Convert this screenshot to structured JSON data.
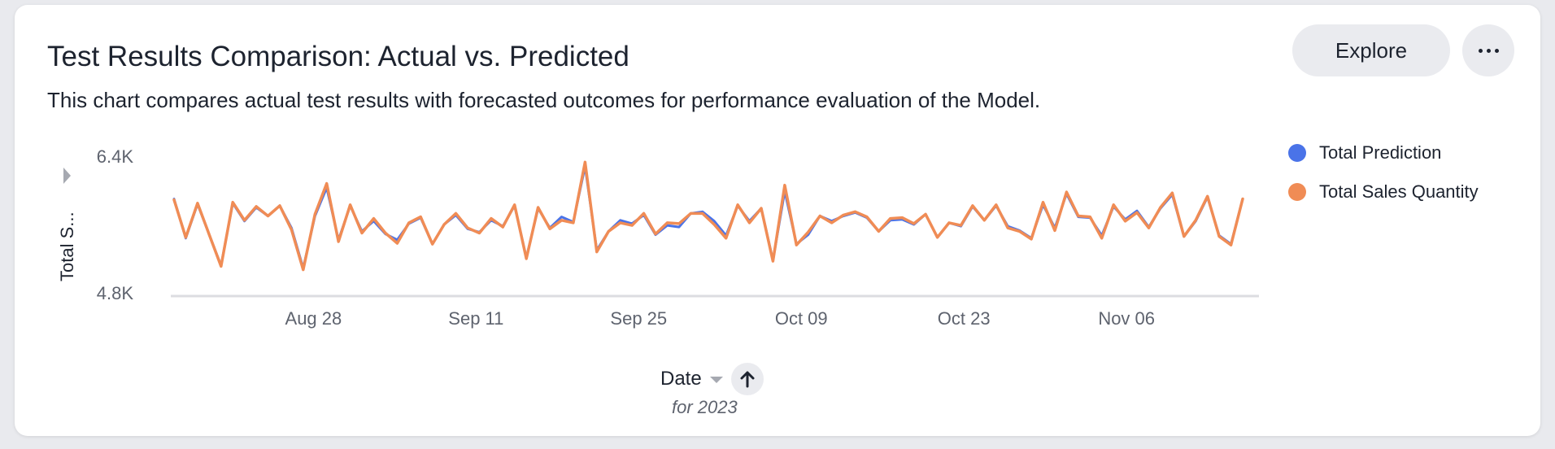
{
  "header": {
    "title": "Test Results Comparison: Actual vs. Predicted",
    "subtitle": "This chart compares actual test results with forecasted outcomes for performance evaluation of the Model.",
    "explore_label": "Explore",
    "more_icon": "more-horizontal-icon"
  },
  "x_axis": {
    "label": "Date",
    "note": "for 2023",
    "sort_icon": "arrow-up-icon"
  },
  "y_axis": {
    "label": "Total S..."
  },
  "colors": {
    "prediction": "#4a73e8",
    "sales": "#f08c55",
    "grid": "#dcdde1",
    "tick_text": "#5e636e"
  },
  "legend": {
    "items": [
      {
        "label": "Total Prediction"
      },
      {
        "label": "Total Sales Quantity"
      }
    ]
  },
  "chart_data": {
    "type": "line",
    "title": "Test Results Comparison: Actual vs. Predicted",
    "xlabel": "Date",
    "ylabel": "Total S...",
    "x_start": "2023-08-16",
    "x_end": "2023-11-16",
    "x_ticks": [
      "Aug 28",
      "Sep 11",
      "Sep 25",
      "Oct 09",
      "Oct 23",
      "Nov 06"
    ],
    "y_ticks": [
      "6.4K",
      "4.8K"
    ],
    "ylim": [
      4800,
      6400
    ],
    "grid": false,
    "legend_position": "right",
    "series": [
      {
        "name": "Total Prediction",
        "values": [
          5900,
          5440,
          5840,
          5480,
          5120,
          5850,
          5640,
          5800,
          5700,
          5820,
          5560,
          5090,
          5700,
          6030,
          5420,
          5820,
          5520,
          5640,
          5490,
          5420,
          5610,
          5680,
          5370,
          5600,
          5710,
          5550,
          5510,
          5650,
          5580,
          5820,
          5210,
          5790,
          5560,
          5690,
          5630,
          6280,
          5300,
          5520,
          5650,
          5610,
          5710,
          5480,
          5590,
          5570,
          5730,
          5750,
          5640,
          5470,
          5820,
          5640,
          5790,
          5180,
          5990,
          5370,
          5480,
          5700,
          5640,
          5700,
          5740,
          5680,
          5520,
          5650,
          5660,
          5600,
          5720,
          5450,
          5620,
          5580,
          5810,
          5650,
          5820,
          5580,
          5530,
          5440,
          5830,
          5560,
          5960,
          5690,
          5680,
          5470,
          5810,
          5660,
          5760,
          5570,
          5790,
          5950,
          5460,
          5640,
          5920,
          5470,
          5370,
          5900
        ],
        "color": "#4a73e8"
      },
      {
        "name": "Total Sales Quantity",
        "values": [
          5890,
          5450,
          5850,
          5480,
          5110,
          5860,
          5650,
          5810,
          5700,
          5820,
          5540,
          5070,
          5720,
          6080,
          5400,
          5830,
          5500,
          5670,
          5500,
          5380,
          5620,
          5690,
          5370,
          5600,
          5730,
          5560,
          5500,
          5670,
          5570,
          5830,
          5200,
          5800,
          5550,
          5650,
          5620,
          6330,
          5280,
          5520,
          5620,
          5590,
          5730,
          5490,
          5620,
          5610,
          5730,
          5730,
          5600,
          5440,
          5830,
          5620,
          5790,
          5170,
          6060,
          5360,
          5510,
          5700,
          5620,
          5710,
          5750,
          5690,
          5520,
          5670,
          5680,
          5610,
          5720,
          5450,
          5620,
          5590,
          5820,
          5650,
          5830,
          5560,
          5520,
          5430,
          5860,
          5530,
          5980,
          5700,
          5690,
          5440,
          5830,
          5640,
          5740,
          5560,
          5800,
          5970,
          5460,
          5650,
          5930,
          5460,
          5360,
          5900
        ],
        "color": "#f08c55"
      }
    ]
  }
}
